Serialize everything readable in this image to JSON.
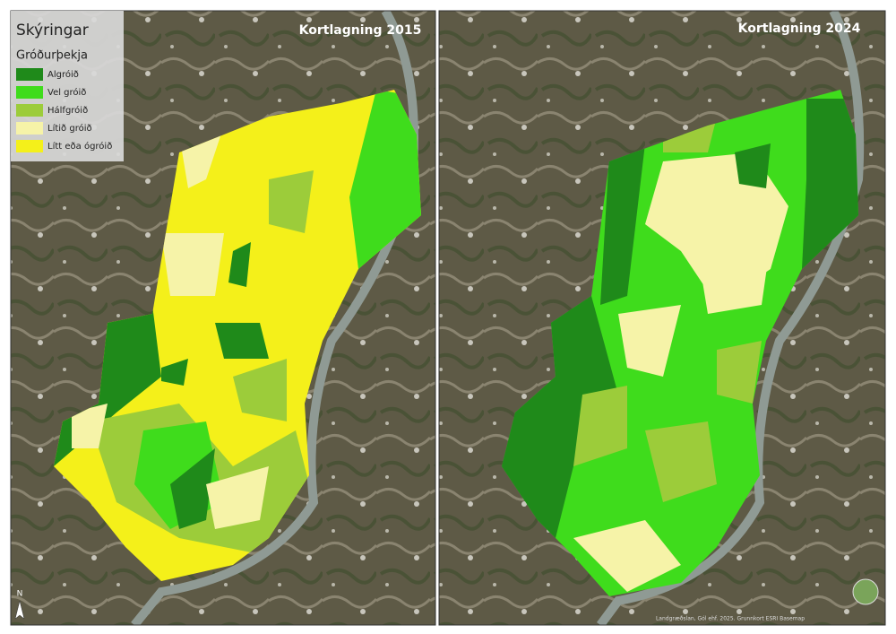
{
  "legend": {
    "title": "Skýringar",
    "subtitle": "Gróðurþekja",
    "items": [
      {
        "label": "Algróið",
        "color": "#1f8a1a"
      },
      {
        "label": "Vel gróið",
        "color": "#3fdc1c"
      },
      {
        "label": "Hálfgróið",
        "color": "#9ccc3a"
      },
      {
        "label": "Lítið gróið",
        "color": "#f6f3a8"
      },
      {
        "label": "Lítt eða ógróið",
        "color": "#f4f01a"
      }
    ]
  },
  "panels": [
    {
      "title": "Kortlagning 2015"
    },
    {
      "title": "Kortlagning 2024"
    }
  ],
  "north_arrow": "N",
  "credit": "Landgræðslan, Gól ehf. 2025. Grunnkort ESRI Basemap"
}
